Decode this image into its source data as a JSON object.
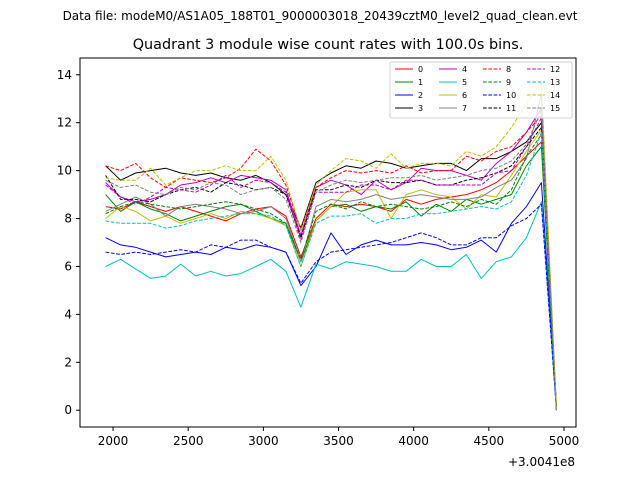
{
  "chart_data": {
    "type": "line",
    "suptitle": "Data file: modeM0/AS1A05_188T01_9000003018_20439cztM0_level2_quad_clean.evt",
    "title": "Quadrant 3 module wise count rates with 100.0s bins.",
    "xlabel": "",
    "ylabel": "",
    "x_offset_label": "+3.0041e8",
    "xlim": [
      1780,
      5080
    ],
    "ylim": [
      -0.7,
      14.7
    ],
    "xticks": [
      2000,
      2500,
      3000,
      3500,
      4000,
      4500,
      5000
    ],
    "yticks": [
      0,
      2,
      4,
      6,
      8,
      10,
      12,
      14
    ],
    "grid": false,
    "legend_position": "top-right",
    "x": [
      1950,
      2050,
      2150,
      2250,
      2350,
      2450,
      2550,
      2650,
      2750,
      2850,
      2950,
      3050,
      3150,
      3250,
      3350,
      3450,
      3550,
      3650,
      3750,
      3850,
      3950,
      4050,
      4150,
      4250,
      4350,
      4450,
      4550,
      4650,
      4750,
      4850,
      4950
    ],
    "series": [
      {
        "name": "0",
        "color": "#ff0000",
        "dash": "solid",
        "values": [
          8.5,
          8.4,
          8.7,
          8.5,
          8.3,
          8.5,
          8.3,
          8.1,
          7.9,
          8.2,
          8.4,
          8.5,
          8.1,
          6.4,
          8.0,
          8.6,
          8.5,
          8.6,
          8.5,
          8.3,
          8.8,
          8.6,
          8.8,
          8.9,
          9.0,
          9.2,
          9.5,
          10.0,
          10.6,
          11.2,
          0.0
        ]
      },
      {
        "name": "1",
        "color": "#008000",
        "dash": "solid",
        "values": [
          9.0,
          8.3,
          8.7,
          8.4,
          8.2,
          7.9,
          8.1,
          8.3,
          8.5,
          8.6,
          8.3,
          8.0,
          7.8,
          6.2,
          7.9,
          8.5,
          8.6,
          8.3,
          8.5,
          8.4,
          8.7,
          8.1,
          8.6,
          8.3,
          8.8,
          8.6,
          8.8,
          9.0,
          10.2,
          11.0,
          0.0
        ]
      },
      {
        "name": "2",
        "color": "#0000ff",
        "dash": "solid",
        "values": [
          7.2,
          6.9,
          6.8,
          6.6,
          6.4,
          6.5,
          6.6,
          6.5,
          6.8,
          6.7,
          6.9,
          6.8,
          6.6,
          5.2,
          6.0,
          7.4,
          6.5,
          6.9,
          7.1,
          6.9,
          6.9,
          7.0,
          6.9,
          6.7,
          6.8,
          7.1,
          6.6,
          7.8,
          8.5,
          9.5,
          0.0
        ]
      },
      {
        "name": "3",
        "color": "#000000",
        "dash": "solid",
        "values": [
          10.2,
          9.6,
          9.9,
          10.0,
          10.1,
          9.9,
          9.8,
          9.9,
          9.7,
          9.6,
          9.8,
          9.5,
          9.0,
          7.6,
          9.5,
          9.9,
          10.2,
          10.1,
          10.4,
          10.3,
          10.1,
          10.2,
          10.3,
          10.3,
          10.0,
          10.5,
          10.5,
          10.8,
          11.2,
          12.0,
          0.0
        ]
      },
      {
        "name": "4",
        "color": "#bf00bf",
        "dash": "solid",
        "values": [
          9.5,
          8.9,
          8.7,
          8.8,
          9.0,
          9.4,
          9.5,
          9.7,
          9.5,
          9.8,
          9.7,
          9.6,
          9.2,
          7.3,
          9.3,
          9.6,
          9.4,
          9.0,
          9.6,
          9.2,
          9.5,
          10.1,
          10.0,
          10.0,
          9.8,
          9.6,
          10.3,
          10.8,
          11.6,
          12.6,
          0.0
        ]
      },
      {
        "name": "5",
        "color": "#00bfbf",
        "dash": "solid",
        "values": [
          6.0,
          6.3,
          5.9,
          5.5,
          5.6,
          6.1,
          5.6,
          5.8,
          5.6,
          5.7,
          6.0,
          6.3,
          5.8,
          4.3,
          6.1,
          5.9,
          6.2,
          6.1,
          6.0,
          5.8,
          5.8,
          6.3,
          6.0,
          6.0,
          6.5,
          5.5,
          6.2,
          6.4,
          7.2,
          8.7,
          0.0
        ]
      },
      {
        "name": "6",
        "color": "#bfbf00",
        "dash": "solid",
        "values": [
          8.0,
          8.5,
          8.3,
          7.9,
          8.1,
          7.8,
          8.0,
          8.2,
          8.0,
          8.3,
          8.2,
          8.0,
          7.7,
          6.0,
          7.9,
          8.5,
          9.1,
          9.2,
          9.2,
          8.0,
          9.0,
          9.2,
          9.0,
          8.9,
          8.4,
          9.0,
          8.9,
          9.8,
          10.8,
          11.7,
          0.0
        ]
      },
      {
        "name": "7",
        "color": "#808080",
        "dash": "solid",
        "values": [
          8.3,
          8.6,
          8.9,
          8.6,
          8.1,
          8.5,
          8.6,
          8.5,
          8.4,
          8.2,
          8.3,
          8.5,
          8.0,
          6.2,
          8.5,
          8.8,
          8.7,
          8.8,
          9.0,
          8.8,
          8.9,
          9.0,
          8.9,
          8.8,
          8.8,
          8.9,
          9.3,
          9.6,
          10.5,
          13.2,
          0.0
        ]
      },
      {
        "name": "8",
        "color": "#ff0000",
        "dash": "dashed",
        "values": [
          10.2,
          10.0,
          10.3,
          9.7,
          9.3,
          9.7,
          9.6,
          9.5,
          9.7,
          10.1,
          10.9,
          10.4,
          9.4,
          7.5,
          9.3,
          9.7,
          10.0,
          9.9,
          10.0,
          9.9,
          10.2,
          9.9,
          10.0,
          10.0,
          10.6,
          10.4,
          10.8,
          11.0,
          11.6,
          12.3,
          0.0
        ]
      },
      {
        "name": "9",
        "color": "#008000",
        "dash": "dashed",
        "values": [
          8.2,
          8.5,
          8.7,
          8.6,
          8.5,
          8.4,
          8.5,
          8.6,
          8.7,
          8.6,
          8.4,
          8.2,
          7.8,
          6.3,
          8.3,
          8.6,
          8.4,
          8.7,
          8.5,
          8.6,
          8.5,
          8.4,
          8.5,
          8.7,
          8.5,
          8.8,
          8.6,
          9.2,
          10.6,
          11.5,
          0.0
        ]
      },
      {
        "name": "10",
        "color": "#0000ff",
        "dash": "dashed",
        "values": [
          6.6,
          6.5,
          6.6,
          6.5,
          6.6,
          6.7,
          6.6,
          6.9,
          6.8,
          7.1,
          7.1,
          6.8,
          6.6,
          5.3,
          6.2,
          6.6,
          6.7,
          6.8,
          6.9,
          7.0,
          7.2,
          7.4,
          7.2,
          6.9,
          6.9,
          7.2,
          7.2,
          7.7,
          8.0,
          8.6,
          0.0
        ]
      },
      {
        "name": "11",
        "color": "#000000",
        "dash": "dashed",
        "values": [
          9.8,
          8.8,
          8.8,
          8.7,
          9.0,
          9.2,
          9.3,
          9.1,
          9.5,
          9.4,
          9.2,
          9.3,
          9.0,
          7.2,
          9.2,
          9.2,
          9.4,
          9.3,
          9.6,
          9.5,
          9.5,
          9.6,
          9.4,
          9.4,
          9.6,
          9.7,
          9.9,
          10.2,
          11.0,
          11.8,
          0.0
        ]
      },
      {
        "name": "12",
        "color": "#bf00bf",
        "dash": "dashed",
        "values": [
          9.4,
          8.9,
          8.6,
          8.9,
          9.3,
          9.2,
          9.1,
          9.4,
          9.8,
          9.3,
          9.6,
          9.5,
          9.1,
          7.1,
          9.1,
          9.1,
          9.1,
          9.4,
          9.4,
          9.2,
          9.6,
          9.6,
          9.4,
          9.4,
          9.4,
          9.4,
          9.9,
          10.0,
          11.0,
          12.2,
          0.0
        ]
      },
      {
        "name": "13",
        "color": "#00bfbf",
        "dash": "dashed",
        "values": [
          7.9,
          7.8,
          7.8,
          7.8,
          7.6,
          7.7,
          7.9,
          8.0,
          8.1,
          8.2,
          8.2,
          8.1,
          7.7,
          6.0,
          7.8,
          8.1,
          8.1,
          8.2,
          7.8,
          8.0,
          8.0,
          8.2,
          8.2,
          8.3,
          8.4,
          8.5,
          8.4,
          8.7,
          9.8,
          11.6,
          0.0
        ]
      },
      {
        "name": "14",
        "color": "#bfbf00",
        "dash": "dashed",
        "values": [
          9.7,
          9.6,
          9.6,
          10.1,
          9.4,
          9.7,
          10.0,
          10.0,
          10.2,
          10.0,
          10.0,
          10.6,
          9.6,
          7.5,
          9.4,
          10.0,
          10.5,
          10.4,
          10.1,
          10.7,
          10.1,
          10.3,
          10.3,
          10.2,
          10.8,
          10.6,
          11.0,
          11.8,
          12.8,
          13.7,
          0.0
        ]
      },
      {
        "name": "15",
        "color": "#808080",
        "dash": "dashed",
        "values": [
          9.6,
          9.3,
          9.4,
          9.1,
          9.0,
          9.3,
          9.2,
          9.5,
          9.4,
          9.0,
          9.2,
          9.3,
          8.8,
          7.0,
          9.1,
          9.4,
          9.6,
          9.5,
          9.6,
          9.7,
          9.7,
          9.8,
          9.6,
          9.7,
          9.8,
          10.0,
          10.1,
          10.4,
          11.1,
          12.5,
          0.0
        ]
      }
    ]
  }
}
